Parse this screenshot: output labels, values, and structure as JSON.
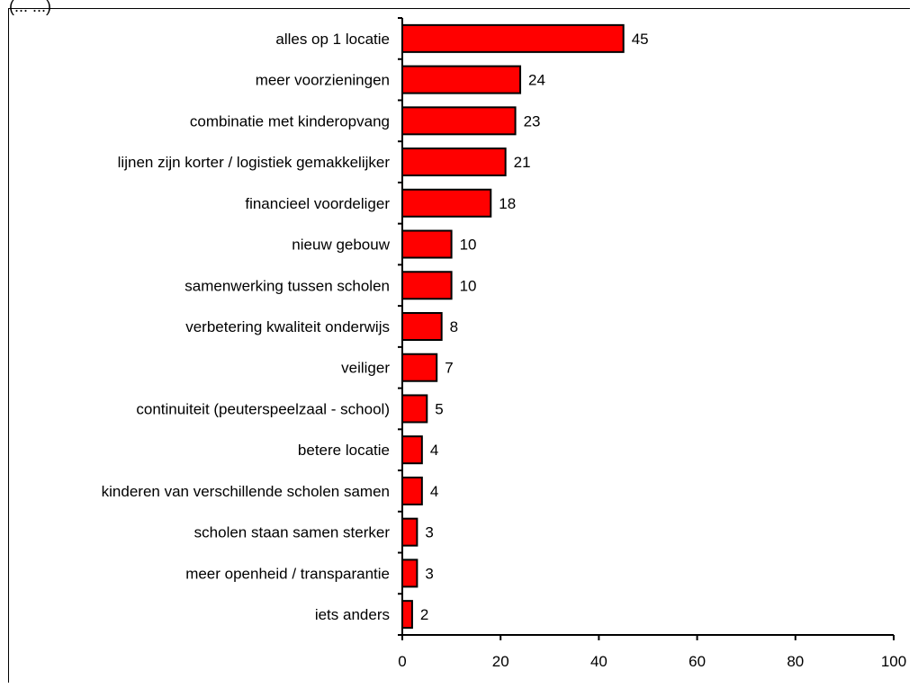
{
  "top_fragment": "(... ...)",
  "chart_data": {
    "type": "bar",
    "orientation": "horizontal",
    "categories": [
      "alles op 1 locatie",
      "meer voorzieningen",
      "combinatie met kinderopvang",
      "lijnen zijn korter / logistiek gemakkelijker",
      "financieel voordeliger",
      "nieuw gebouw",
      "samenwerking tussen scholen",
      "verbetering kwaliteit onderwijs",
      "veiliger",
      "continuiteit (peuterspeelzaal - school)",
      "betere locatie",
      "kinderen van verschillende scholen samen",
      "scholen staan samen sterker",
      "meer openheid / transparantie",
      "iets anders"
    ],
    "values": [
      45,
      24,
      23,
      21,
      18,
      10,
      10,
      8,
      7,
      5,
      4,
      4,
      3,
      3,
      2
    ],
    "xlim": [
      0,
      100
    ],
    "x_ticks": [
      0,
      20,
      40,
      60,
      80,
      100
    ],
    "bar_color": "#ff0000",
    "bar_edge_color": "#000000",
    "grid": false,
    "legend": "none"
  }
}
